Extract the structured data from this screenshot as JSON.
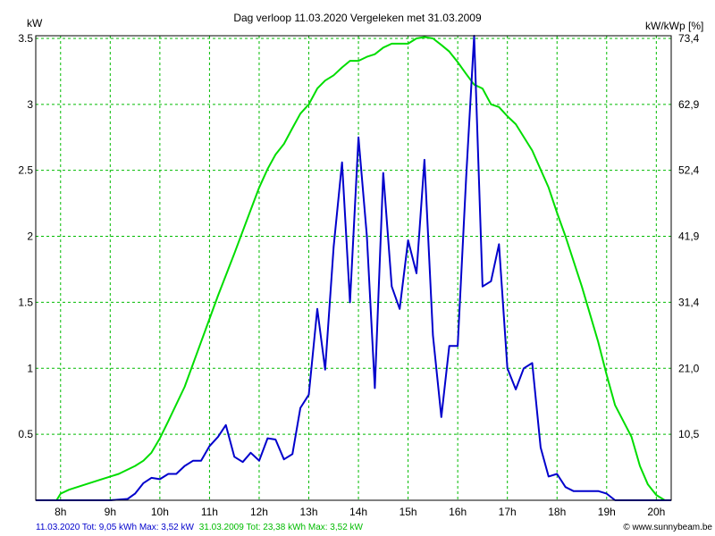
{
  "chart_data": {
    "type": "line",
    "title": "Dag  verloop 11.03.2020   Vergeleken met 31.03.2009",
    "ylabel_left": "kW",
    "ylabel_right": "kW/kWp [%]",
    "x_tick_labels": [
      "8h",
      "9h",
      "10h",
      "11h",
      "12h",
      "13h",
      "14h",
      "15h",
      "16h",
      "17h",
      "18h",
      "19h",
      "20h"
    ],
    "x_range_hours": [
      7.5,
      20.3
    ],
    "y_left_range": [
      0,
      3.52
    ],
    "y_left_ticks": [
      "0.5",
      "1",
      "1.5",
      "2",
      "2.5",
      "3",
      "3.5"
    ],
    "y_right_ticks": [
      "10,5",
      "21,0",
      "31,4",
      "41,9",
      "52,4",
      "62,9",
      "73,4"
    ],
    "grid": true,
    "colors": {
      "series_2020": "#0000cc",
      "series_2009": "#00dd00",
      "grid": "#00bb00",
      "footer_right": "#000000"
    },
    "series": [
      {
        "name": "11.03.2020",
        "color": "#0000cc",
        "points": [
          [
            7.5,
            0.0
          ],
          [
            9.0,
            0.0
          ],
          [
            9.35,
            0.01
          ],
          [
            9.5,
            0.05
          ],
          [
            9.67,
            0.13
          ],
          [
            9.83,
            0.17
          ],
          [
            10.0,
            0.16
          ],
          [
            10.17,
            0.2
          ],
          [
            10.33,
            0.2
          ],
          [
            10.5,
            0.26
          ],
          [
            10.67,
            0.3
          ],
          [
            10.83,
            0.3
          ],
          [
            11.0,
            0.41
          ],
          [
            11.17,
            0.48
          ],
          [
            11.33,
            0.57
          ],
          [
            11.5,
            0.33
          ],
          [
            11.67,
            0.29
          ],
          [
            11.83,
            0.36
          ],
          [
            12.0,
            0.3
          ],
          [
            12.17,
            0.47
          ],
          [
            12.33,
            0.46
          ],
          [
            12.5,
            0.31
          ],
          [
            12.67,
            0.35
          ],
          [
            12.83,
            0.7
          ],
          [
            13.0,
            0.8
          ],
          [
            13.17,
            1.45
          ],
          [
            13.33,
            0.99
          ],
          [
            13.5,
            1.92
          ],
          [
            13.67,
            2.56
          ],
          [
            13.83,
            1.5
          ],
          [
            14.0,
            2.75
          ],
          [
            14.17,
            2.0
          ],
          [
            14.33,
            0.85
          ],
          [
            14.5,
            2.48
          ],
          [
            14.67,
            1.62
          ],
          [
            14.83,
            1.45
          ],
          [
            15.0,
            1.97
          ],
          [
            15.17,
            1.72
          ],
          [
            15.33,
            2.58
          ],
          [
            15.5,
            1.25
          ],
          [
            15.67,
            0.63
          ],
          [
            15.83,
            1.17
          ],
          [
            16.0,
            1.17
          ],
          [
            16.17,
            2.45
          ],
          [
            16.33,
            3.52
          ],
          [
            16.5,
            1.62
          ],
          [
            16.67,
            1.66
          ],
          [
            16.83,
            1.94
          ],
          [
            17.0,
            1.0
          ],
          [
            17.17,
            0.84
          ],
          [
            17.33,
            1.0
          ],
          [
            17.5,
            1.04
          ],
          [
            17.67,
            0.4
          ],
          [
            17.83,
            0.18
          ],
          [
            18.0,
            0.2
          ],
          [
            18.17,
            0.1
          ],
          [
            18.33,
            0.07
          ],
          [
            18.83,
            0.07
          ],
          [
            19.0,
            0.05
          ],
          [
            19.17,
            0.0
          ],
          [
            20.3,
            0.0
          ]
        ]
      },
      {
        "name": "31.03.2009",
        "color": "#00dd00",
        "points": [
          [
            7.5,
            0.0
          ],
          [
            7.92,
            0.0
          ],
          [
            8.0,
            0.05
          ],
          [
            8.17,
            0.08
          ],
          [
            8.5,
            0.12
          ],
          [
            8.83,
            0.16
          ],
          [
            9.17,
            0.2
          ],
          [
            9.5,
            0.26
          ],
          [
            9.67,
            0.3
          ],
          [
            9.83,
            0.36
          ],
          [
            10.0,
            0.47
          ],
          [
            10.17,
            0.6
          ],
          [
            10.5,
            0.86
          ],
          [
            10.83,
            1.2
          ],
          [
            11.17,
            1.55
          ],
          [
            11.5,
            1.87
          ],
          [
            11.83,
            2.2
          ],
          [
            12.0,
            2.37
          ],
          [
            12.17,
            2.51
          ],
          [
            12.33,
            2.62
          ],
          [
            12.5,
            2.7
          ],
          [
            12.67,
            2.82
          ],
          [
            12.83,
            2.93
          ],
          [
            13.0,
            3.0
          ],
          [
            13.17,
            3.12
          ],
          [
            13.33,
            3.18
          ],
          [
            13.5,
            3.22
          ],
          [
            13.67,
            3.28
          ],
          [
            13.83,
            3.33
          ],
          [
            14.0,
            3.33
          ],
          [
            14.17,
            3.36
          ],
          [
            14.33,
            3.38
          ],
          [
            14.5,
            3.43
          ],
          [
            14.67,
            3.46
          ],
          [
            14.83,
            3.46
          ],
          [
            15.0,
            3.46
          ],
          [
            15.17,
            3.5
          ],
          [
            15.33,
            3.51
          ],
          [
            15.5,
            3.5
          ],
          [
            15.67,
            3.45
          ],
          [
            15.83,
            3.4
          ],
          [
            16.0,
            3.32
          ],
          [
            16.17,
            3.23
          ],
          [
            16.33,
            3.15
          ],
          [
            16.5,
            3.12
          ],
          [
            16.67,
            3.0
          ],
          [
            16.83,
            2.98
          ],
          [
            17.0,
            2.91
          ],
          [
            17.17,
            2.85
          ],
          [
            17.5,
            2.65
          ],
          [
            17.83,
            2.37
          ],
          [
            18.0,
            2.18
          ],
          [
            18.17,
            2.0
          ],
          [
            18.5,
            1.62
          ],
          [
            18.83,
            1.2
          ],
          [
            19.0,
            0.95
          ],
          [
            19.17,
            0.72
          ],
          [
            19.5,
            0.48
          ],
          [
            19.67,
            0.26
          ],
          [
            19.83,
            0.12
          ],
          [
            20.0,
            0.04
          ],
          [
            20.17,
            0.0
          ],
          [
            20.3,
            0.0
          ]
        ]
      }
    ]
  },
  "footer": {
    "left_2020": "11.03.2020 Tot: 9,05 kWh Max: 3,52 kW",
    "left_2009": "31.03.2009 Tot: 23,38 kWh Max: 3,52 kW",
    "right": "www.sunnybeam.be"
  }
}
